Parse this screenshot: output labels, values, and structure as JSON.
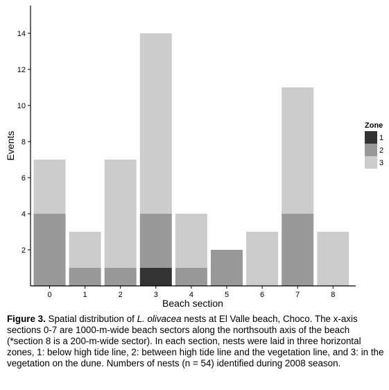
{
  "chart_data": {
    "type": "bar",
    "stacked": true,
    "title": "",
    "xlabel": "Beach section",
    "ylabel": "Events",
    "categories": [
      "0",
      "1",
      "2",
      "3",
      "4",
      "5",
      "6",
      "7",
      "8"
    ],
    "series": [
      {
        "name": "1",
        "color": "#333333",
        "values": [
          0,
          0,
          0,
          1,
          0,
          0,
          0,
          0,
          0
        ]
      },
      {
        "name": "2",
        "color": "#999999",
        "values": [
          4,
          1,
          1,
          3,
          1,
          2,
          0,
          4,
          0
        ]
      },
      {
        "name": "3",
        "color": "#cccccc",
        "values": [
          3,
          2,
          6,
          10,
          3,
          0,
          3,
          7,
          3
        ]
      }
    ],
    "y_ticks": [
      "2",
      "4",
      "6",
      "8",
      "10",
      "12",
      "14"
    ],
    "ylim": [
      0,
      16
    ],
    "grid": false,
    "legend": {
      "title": "Zone",
      "position": "right"
    }
  },
  "caption": {
    "label": "Figure 3.",
    "text_before_species": " Spatial distribution of ",
    "species": "L. olivacea",
    "text_after_species": " nests at El Valle beach, Choco. The x-axis sections 0-7 are 1000-m-wide beach sectors along the northsouth axis of the beach (*section 8 is a 200-m-wide sector). In each section, nests were laid in three horizontal zones, 1: below high tide line, 2: between high tide line and the vegetation line, and 3: in the vegetation on the dune. Numbers of nests (n = 54) identified during 2008 season."
  }
}
